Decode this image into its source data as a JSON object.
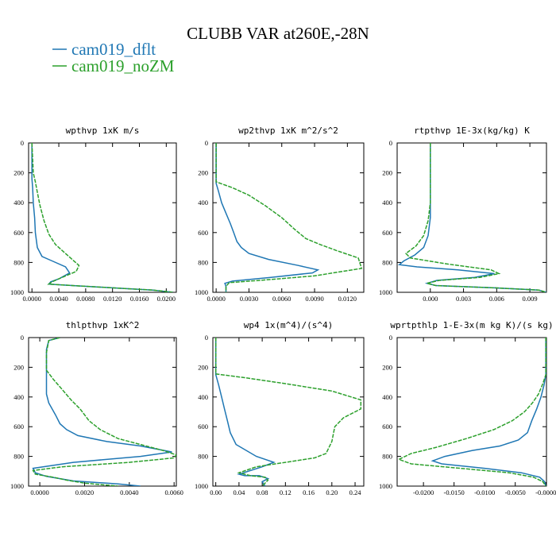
{
  "title": "CLUBB VAR at260E,-28N",
  "legend": [
    {
      "label": "cam019_dflt",
      "color": "#1f77b4"
    },
    {
      "label": "cam019_noZM",
      "color": "#2ca02c"
    }
  ],
  "chart_data": [
    {
      "type": "line",
      "title": "wpthvp   1xK m/s",
      "xlim": [
        -0.0005,
        0.0215
      ],
      "ylim": [
        1000,
        0
      ],
      "xticks": [
        0.0,
        0.004,
        0.008,
        0.012,
        0.016,
        0.02
      ],
      "xtick_labels": [
        "0.0000",
        "0.0040",
        "0.0080",
        "0.0120",
        "0.0160",
        "0.0200"
      ],
      "yticks": [
        0,
        200,
        400,
        600,
        800,
        1000
      ],
      "ytick_labels": [
        "0",
        "200",
        "400",
        "600",
        "800",
        "1000"
      ],
      "series": [
        {
          "name": "cam019_dflt",
          "color": "#1f77b4",
          "dashed": false,
          "x": [
            0,
            0,
            0.0001,
            0.0002,
            0.0004,
            0.0005,
            0.0008,
            0.0015,
            0.003,
            0.005,
            0.0056,
            0.004,
            0.0028,
            0.0025,
            0.006,
            0.012,
            0.018,
            0.021
          ],
          "y": [
            0,
            240,
            300,
            400,
            500,
            600,
            700,
            760,
            790,
            830,
            870,
            910,
            930,
            945,
            955,
            970,
            985,
            1000
          ]
        },
        {
          "name": "cam019_noZM",
          "color": "#2ca02c",
          "dashed": true,
          "x": [
            0,
            0.0002,
            0.0005,
            0.0008,
            0.0012,
            0.0018,
            0.0025,
            0.0035,
            0.0055,
            0.007,
            0.0066,
            0.0045,
            0.003,
            0.0025,
            0.006,
            0.012,
            0.018,
            0.021
          ],
          "y": [
            0,
            200,
            260,
            330,
            420,
            520,
            610,
            680,
            760,
            820,
            860,
            900,
            930,
            945,
            955,
            970,
            985,
            1000
          ]
        }
      ]
    },
    {
      "type": "line",
      "title": "wp2thvp   1xK m^2/s^2",
      "xlim": [
        -0.0003,
        0.0135
      ],
      "ylim": [
        1000,
        0
      ],
      "xticks": [
        0.0,
        0.003,
        0.006,
        0.009,
        0.012
      ],
      "xtick_labels": [
        "0.0000",
        "0.0030",
        "0.0060",
        "0.0090",
        "0.0120"
      ],
      "yticks": [
        0,
        200,
        400,
        600,
        800,
        1000
      ],
      "ytick_labels": [
        "0",
        "200",
        "400",
        "600",
        "800",
        "1000"
      ],
      "series": [
        {
          "name": "cam019_dflt",
          "color": "#1f77b4",
          "dashed": false,
          "x": [
            0,
            0,
            0.0002,
            0.0005,
            0.0009,
            0.0013,
            0.0016,
            0.0019,
            0.0023,
            0.003,
            0.0048,
            0.0075,
            0.0093,
            0.0088,
            0.005,
            0.0015,
            0.0008,
            0.0009,
            0.0009
          ],
          "y": [
            0,
            270,
            320,
            400,
            470,
            540,
            600,
            660,
            700,
            740,
            780,
            820,
            850,
            870,
            900,
            925,
            940,
            960,
            1000
          ]
        },
        {
          "name": "cam019_noZM",
          "color": "#2ca02c",
          "dashed": true,
          "x": [
            0,
            0,
            0.0015,
            0.003,
            0.0045,
            0.006,
            0.0072,
            0.0082,
            0.0095,
            0.011,
            0.013,
            0.0133,
            0.009,
            0.004,
            0.0012,
            0.0009,
            0.0009
          ],
          "y": [
            0,
            260,
            300,
            350,
            420,
            500,
            580,
            640,
            680,
            720,
            770,
            840,
            890,
            920,
            935,
            960,
            1000
          ]
        }
      ]
    },
    {
      "type": "line",
      "title": "rtpthvp   1E-3x(kg/kg) K",
      "xlim": [
        -0.003,
        0.0105
      ],
      "ylim": [
        1000,
        0
      ],
      "xticks": [
        0.0,
        0.003,
        0.006,
        0.009
      ],
      "xtick_labels": [
        "0.000",
        "0.003",
        "0.006",
        "0.009"
      ],
      "yticks": [
        0,
        200,
        400,
        600,
        800,
        1000
      ],
      "ytick_labels": [
        "0",
        "200",
        "400",
        "600",
        "800",
        "1000"
      ],
      "series": [
        {
          "name": "cam019_dflt",
          "color": "#1f77b4",
          "dashed": false,
          "x": [
            0,
            0,
            -0.0002,
            -0.0006,
            -0.0014,
            -0.0024,
            -0.0028,
            -0.0012,
            0.0025,
            0.0058,
            0.004,
            0.0006,
            -0.0003,
            0.0005,
            0.003,
            0.0058,
            0.0098,
            0.0105
          ],
          "y": [
            0,
            500,
            620,
            700,
            750,
            790,
            815,
            830,
            850,
            875,
            900,
            920,
            940,
            955,
            962,
            970,
            985,
            1000
          ]
        },
        {
          "name": "cam019_noZM",
          "color": "#2ca02c",
          "dashed": true,
          "x": [
            0,
            0,
            -0.0002,
            -0.0006,
            -0.0013,
            -0.0022,
            -0.0018,
            0.0015,
            0.0055,
            0.0062,
            0.0045,
            0.0008,
            -0.0003,
            0.0005,
            0.003,
            0.0058,
            0.0098,
            0.0105
          ],
          "y": [
            0,
            400,
            520,
            620,
            690,
            740,
            770,
            810,
            850,
            875,
            900,
            920,
            940,
            955,
            962,
            970,
            985,
            1000
          ]
        }
      ]
    },
    {
      "type": "line",
      "title": "thlpthvp   1xK^2",
      "xlim": [
        -0.0005,
        0.0061
      ],
      "ylim": [
        1000,
        0
      ],
      "xticks": [
        0.0,
        0.002,
        0.004,
        0.006
      ],
      "xtick_labels": [
        "0.0000",
        "0.0020",
        "0.0040",
        "0.0060"
      ],
      "yticks": [
        0,
        200,
        400,
        600,
        800,
        1000
      ],
      "ytick_labels": [
        "0",
        "200",
        "400",
        "600",
        "800",
        "1000"
      ],
      "series": [
        {
          "name": "cam019_dflt",
          "color": "#1f77b4",
          "dashed": false,
          "x": [
            0.0009,
            0.0004,
            0.0003,
            0.0003,
            0.0003,
            0.0003,
            0.0004,
            0.0007,
            0.0009,
            0.0012,
            0.0017,
            0.003,
            0.0045,
            0.0059,
            0.0045,
            0.0015,
            -0.0003,
            -0.0002,
            0.0003,
            0.0009,
            0.0015,
            0.0035,
            0.0045
          ],
          "y": [
            0,
            20,
            80,
            200,
            300,
            380,
            440,
            520,
            580,
            620,
            660,
            700,
            730,
            770,
            800,
            840,
            880,
            910,
            935,
            950,
            965,
            985,
            1000
          ]
        },
        {
          "name": "cam019_noZM",
          "color": "#2ca02c",
          "dashed": true,
          "x": [
            0.0009,
            0.0004,
            0.0003,
            0.0003,
            0.0006,
            0.001,
            0.0014,
            0.0018,
            0.0022,
            0.0027,
            0.0035,
            0.0045,
            0.0055,
            0.0061,
            0.006,
            0.004,
            0.001,
            -0.0003,
            -0.0002,
            0.0006,
            0.0012,
            0.002,
            0.0035
          ],
          "y": [
            0,
            20,
            100,
            220,
            280,
            350,
            420,
            480,
            560,
            620,
            680,
            720,
            760,
            790,
            810,
            840,
            870,
            895,
            920,
            940,
            960,
            980,
            1000
          ]
        }
      ]
    },
    {
      "type": "line",
      "title": "wp4   1x(m^4)/(s^4)",
      "xlim": [
        -0.005,
        0.255
      ],
      "ylim": [
        1000,
        0
      ],
      "xticks": [
        0.0,
        0.04,
        0.08,
        0.12,
        0.16,
        0.2,
        0.24
      ],
      "xtick_labels": [
        "0.00",
        "0.04",
        "0.08",
        "0.12",
        "0.16",
        "0.20",
        "0.24"
      ],
      "yticks": [
        0,
        200,
        400,
        600,
        800,
        1000
      ],
      "ytick_labels": [
        "0",
        "200",
        "400",
        "600",
        "800",
        "1000"
      ],
      "series": [
        {
          "name": "cam019_dflt",
          "color": "#1f77b4",
          "dashed": false,
          "x": [
            0,
            0,
            0.005,
            0.01,
            0.015,
            0.02,
            0.025,
            0.035,
            0.07,
            0.1,
            0.08,
            0.04,
            0.05,
            0.075,
            0.09,
            0.08,
            0.085
          ],
          "y": [
            0,
            250,
            320,
            400,
            480,
            560,
            640,
            720,
            800,
            840,
            870,
            920,
            930,
            930,
            950,
            970,
            1000
          ]
        },
        {
          "name": "cam019_noZM",
          "color": "#2ca02c",
          "dashed": true,
          "x": [
            0,
            0,
            0.05,
            0.12,
            0.2,
            0.25,
            0.25,
            0.22,
            0.205,
            0.2,
            0.19,
            0.17,
            0.12,
            0.07,
            0.04,
            0.06,
            0.085,
            0.09,
            0.08
          ],
          "y": [
            0,
            245,
            270,
            310,
            360,
            420,
            480,
            540,
            600,
            700,
            780,
            810,
            840,
            870,
            910,
            930,
            940,
            960,
            1000
          ]
        }
      ]
    },
    {
      "type": "line",
      "title": "wprtpthlp   1-E-3x(m kg K)/(s kg)",
      "xlim": [
        -0.0243,
        0.0001
      ],
      "ylim": [
        1000,
        0
      ],
      "xticks": [
        -0.02,
        -0.015,
        -0.01,
        -0.005,
        0.0
      ],
      "xtick_labels": [
        "-0.0200",
        "-0.0150",
        "-0.0100",
        "-0.0050",
        "-0.0000"
      ],
      "yticks": [
        0,
        200,
        400,
        600,
        800,
        1000
      ],
      "ytick_labels": [
        "0",
        "200",
        "400",
        "600",
        "800",
        "1000"
      ],
      "series": [
        {
          "name": "cam019_dflt",
          "color": "#1f77b4",
          "dashed": false,
          "x": [
            0,
            0,
            -0.0003,
            -0.0008,
            -0.0015,
            -0.0023,
            -0.003,
            -0.0045,
            -0.0075,
            -0.012,
            -0.0165,
            -0.0185,
            -0.017,
            -0.01,
            -0.004,
            -0.001,
            -0.0002,
            0
          ],
          "y": [
            0,
            250,
            320,
            400,
            480,
            560,
            640,
            690,
            730,
            760,
            800,
            830,
            850,
            880,
            910,
            940,
            970,
            1000
          ]
        },
        {
          "name": "cam019_noZM",
          "color": "#2ca02c",
          "dashed": true,
          "x": [
            0,
            0,
            -0.0005,
            -0.0012,
            -0.0022,
            -0.0035,
            -0.0055,
            -0.0085,
            -0.013,
            -0.018,
            -0.022,
            -0.024,
            -0.022,
            -0.014,
            -0.006,
            -0.002,
            -0.0005,
            0
          ],
          "y": [
            0,
            250,
            310,
            380,
            440,
            500,
            560,
            620,
            680,
            740,
            780,
            820,
            850,
            880,
            910,
            940,
            970,
            1000
          ]
        }
      ]
    }
  ]
}
